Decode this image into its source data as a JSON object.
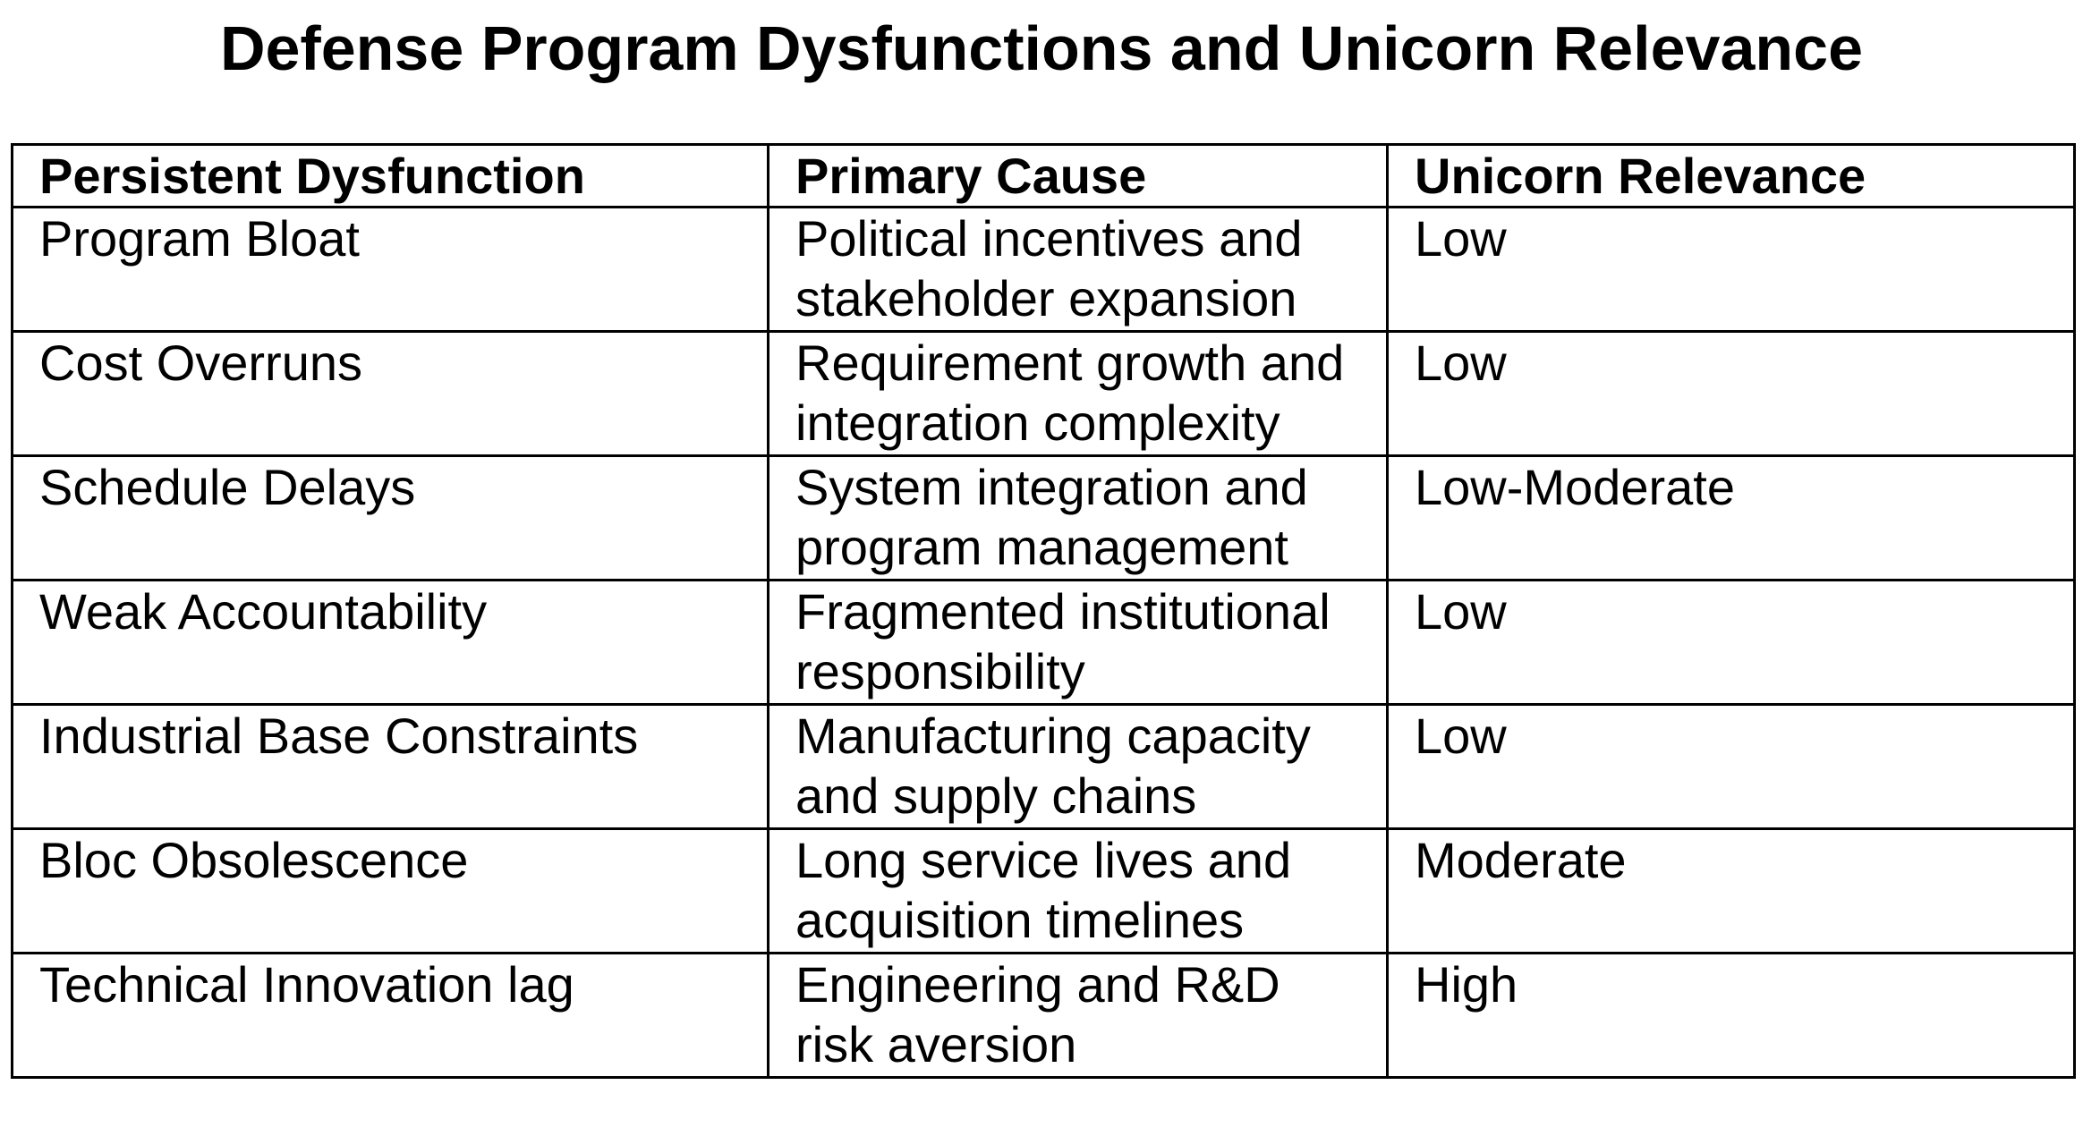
{
  "title": "Defense Program Dysfunctions and Unicorn Relevance",
  "table": {
    "header": [
      "Persistent Dysfunction",
      "Primary Cause",
      "Unicorn Relevance"
    ],
    "rows": [
      [
        "Program Bloat",
        "Political incentives and stakeholder expansion",
        "Low"
      ],
      [
        "Cost Overruns",
        "Requirement growth and integration complexity",
        "Low"
      ],
      [
        "Schedule Delays",
        "System integration and program management",
        "Low-Moderate"
      ],
      [
        "Weak Accountability",
        "Fragmented institutional responsibility",
        "Low"
      ],
      [
        "Industrial Base Constraints",
        "Manufacturing capacity and supply chains",
        "Low"
      ],
      [
        "Bloc Obsolescence",
        "Long service lives and acquisition timelines",
        "Moderate"
      ],
      [
        "Technical Innovation lag",
        "Engineering and R&D risk aversion",
        "High"
      ]
    ]
  }
}
